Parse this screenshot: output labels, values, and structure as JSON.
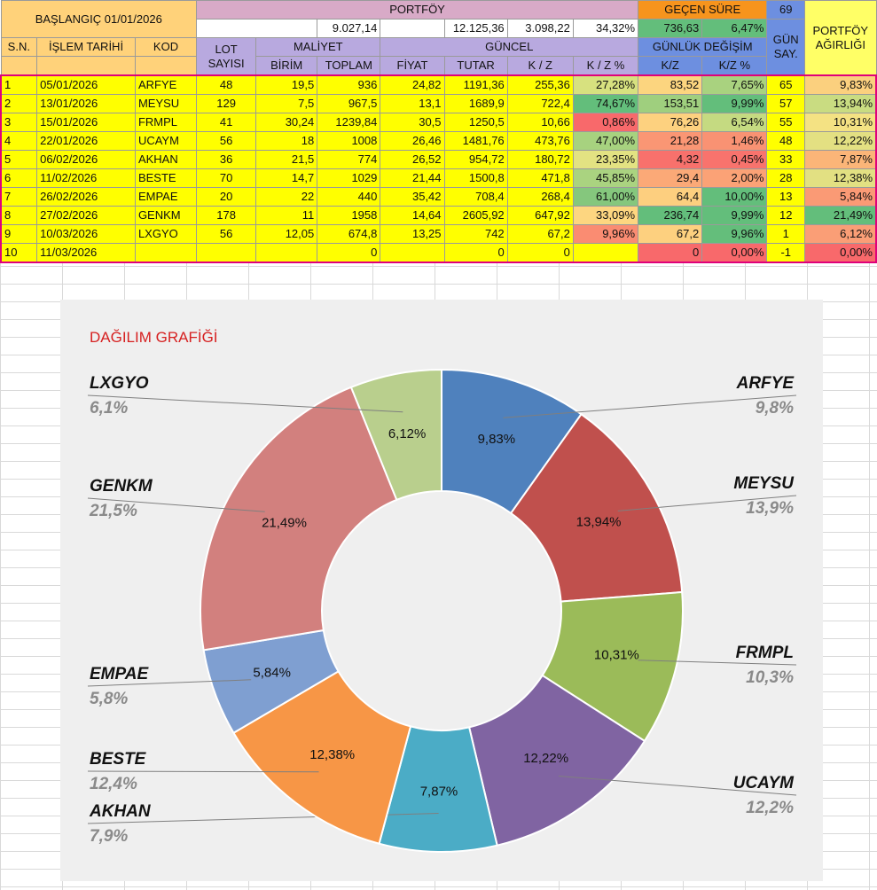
{
  "header": {
    "start_label": "BAŞLANGIÇ 01/01/2026",
    "portfolio_label": "PORTFÖY",
    "elapsed_label": "GEÇEN SÜRE",
    "elapsed_days": "69",
    "cost_total": "9.027,14",
    "current_total": "12.125,36",
    "pl_total": "3.098,22",
    "pl_pct": "34,32%",
    "daily_change": "736,63",
    "daily_pct": "6,47%",
    "gun_say": "GÜN SAY.",
    "weight_label": "PORTFÖY AĞIRLIĞI"
  },
  "columns": {
    "sn": "S.N.",
    "date": "İŞLEM TARİHİ",
    "code": "KOD",
    "lot": "LOT SAYISI",
    "cost": "MALİYET",
    "unit": "BİRİM",
    "total": "TOPLAM",
    "current": "GÜNCEL",
    "price": "FİYAT",
    "amount": "TUTAR",
    "kz": "K / Z",
    "kz_pct": "K / Z %",
    "daily": "GÜNLÜK DEĞİŞİM",
    "daily_kz": "K/Z",
    "daily_kz_pct": "K/Z %"
  },
  "rows": [
    {
      "sn": "1",
      "date": "05/01/2026",
      "code": "ARFYE",
      "lot": "48",
      "unit": "19,5",
      "total": "936",
      "price": "24,82",
      "amount": "1191,36",
      "kz": "255,36",
      "kz_pct": "27,28%",
      "kz_pct_color": "#d7e17f",
      "dkz": "83,52",
      "dkz_color": "#fcd57f",
      "dpct": "7,65%",
      "dpct_color": "#a9d27f",
      "days": "65",
      "weight": "9,83%",
      "weight_color": "#fbd07e"
    },
    {
      "sn": "2",
      "date": "13/01/2026",
      "code": "MEYSU",
      "lot": "129",
      "unit": "7,5",
      "total": "967,5",
      "price": "13,1",
      "amount": "1689,9",
      "kz": "722,4",
      "kz_pct": "74,67%",
      "kz_pct_color": "#63be7b",
      "dkz": "153,51",
      "dkz_color": "#9fcf7e",
      "dpct": "9,99%",
      "dpct_color": "#63be7b",
      "days": "57",
      "weight": "13,94%",
      "weight_color": "#c9dc81"
    },
    {
      "sn": "3",
      "date": "15/01/2026",
      "code": "FRMPL",
      "lot": "41",
      "unit": "30,24",
      "total": "1239,84",
      "price": "30,5",
      "amount": "1250,5",
      "kz": "10,66",
      "kz_pct": "0,86%",
      "kz_pct_color": "#f8696b",
      "dkz": "76,26",
      "dkz_color": "#fdd17f",
      "dpct": "6,54%",
      "dpct_color": "#c5da81",
      "days": "55",
      "weight": "10,31%",
      "weight_color": "#f4e283"
    },
    {
      "sn": "4",
      "date": "22/01/2026",
      "code": "UCAYM",
      "lot": "56",
      "unit": "18",
      "total": "1008",
      "price": "26,46",
      "amount": "1481,76",
      "kz": "473,76",
      "kz_pct": "47,00%",
      "kz_pct_color": "#a7d27f",
      "dkz": "21,28",
      "dkz_color": "#fa9674",
      "dpct": "1,46%",
      "dpct_color": "#f99273",
      "days": "48",
      "weight": "12,22%",
      "weight_color": "#e3e082"
    },
    {
      "sn": "5",
      "date": "06/02/2026",
      "code": "AKHAN",
      "lot": "36",
      "unit": "21,5",
      "total": "774",
      "price": "26,52",
      "amount": "954,72",
      "kz": "180,72",
      "kz_pct": "23,35%",
      "kz_pct_color": "#e3e282",
      "dkz": "4,32",
      "dkz_color": "#f8716c",
      "dpct": "0,45%",
      "dpct_color": "#f8736d",
      "days": "33",
      "weight": "7,87%",
      "weight_color": "#fbb578"
    },
    {
      "sn": "6",
      "date": "11/02/2026",
      "code": "BESTE",
      "lot": "70",
      "unit": "14,7",
      "total": "1029",
      "price": "21,44",
      "amount": "1500,8",
      "kz": "471,8",
      "kz_pct": "45,85%",
      "kz_pct_color": "#aad380",
      "dkz": "29,4",
      "dkz_color": "#fba977",
      "dpct": "2,00%",
      "dpct_color": "#fba276",
      "days": "28",
      "weight": "12,38%",
      "weight_color": "#e2e082"
    },
    {
      "sn": "7",
      "date": "26/02/2026",
      "code": "EMPAE",
      "lot": "20",
      "unit": "22",
      "total": "440",
      "price": "35,42",
      "amount": "708,4",
      "kz": "268,4",
      "kz_pct": "61,00%",
      "kz_pct_color": "#85c77d",
      "dkz": "64,4",
      "dkz_color": "#fdcf7f",
      "dpct": "10,00%",
      "dpct_color": "#63be7b",
      "days": "13",
      "weight": "5,84%",
      "weight_color": "#fa9a75"
    },
    {
      "sn": "8",
      "date": "27/02/2026",
      "code": "GENKM",
      "lot": "178",
      "unit": "11",
      "total": "1958",
      "price": "14,64",
      "amount": "2605,92",
      "kz": "647,92",
      "kz_pct": "33,09%",
      "kz_pct_color": "#fdd680",
      "dkz": "236,74",
      "dkz_color": "#63be7b",
      "dpct": "9,99%",
      "dpct_color": "#63be7b",
      "days": "12",
      "weight": "21,49%",
      "weight_color": "#63be7b"
    },
    {
      "sn": "9",
      "date": "10/03/2026",
      "code": "LXGYO",
      "lot": "56",
      "unit": "12,05",
      "total": "674,8",
      "price": "13,25",
      "amount": "742",
      "kz": "67,2",
      "kz_pct": "9,96%",
      "kz_pct_color": "#fa8c72",
      "dkz": "67,2",
      "dkz_color": "#fdd07f",
      "dpct": "9,96%",
      "dpct_color": "#64be7b",
      "days": "1",
      "weight": "6,12%",
      "weight_color": "#fa9e76"
    },
    {
      "sn": "10",
      "date": "11/03/2026",
      "code": "",
      "lot": "",
      "unit": "",
      "total": "0",
      "price": "",
      "amount": "0",
      "kz": "0",
      "kz_pct": "",
      "kz_pct_color": "#ffff00",
      "dkz": "0",
      "dkz_color": "#f8696b",
      "dpct": "0,00%",
      "dpct_color": "#f8696b",
      "days": "-1",
      "weight": "0,00%",
      "weight_color": "#f8696b"
    }
  ],
  "chart_data": {
    "type": "pie",
    "title": "DAĞILIM GRAFİĞİ",
    "donut": true,
    "categories": [
      "ARFYE",
      "MEYSU",
      "FRMPL",
      "UCAYM",
      "AKHAN",
      "BESTE",
      "EMPAE",
      "GENKM",
      "LXGYO"
    ],
    "values": [
      9.83,
      13.94,
      10.31,
      12.22,
      7.87,
      12.38,
      5.84,
      21.49,
      6.12
    ],
    "slice_labels": [
      "9,83%",
      "13,94%",
      "10,31%",
      "12,22%",
      "7,87%",
      "12,38%",
      "5,84%",
      "21,49%",
      "6,12%"
    ],
    "outer_labels": [
      "9,8%",
      "13,9%",
      "10,3%",
      "12,2%",
      "7,9%",
      "12,4%",
      "5,8%",
      "21,5%",
      "6,1%"
    ],
    "colors": [
      "#4f81bd",
      "#c0504d",
      "#9bbb59",
      "#8064a2",
      "#4bacc6",
      "#f79646",
      "#7f9fd1",
      "#d2807e",
      "#b9cf8d"
    ]
  }
}
